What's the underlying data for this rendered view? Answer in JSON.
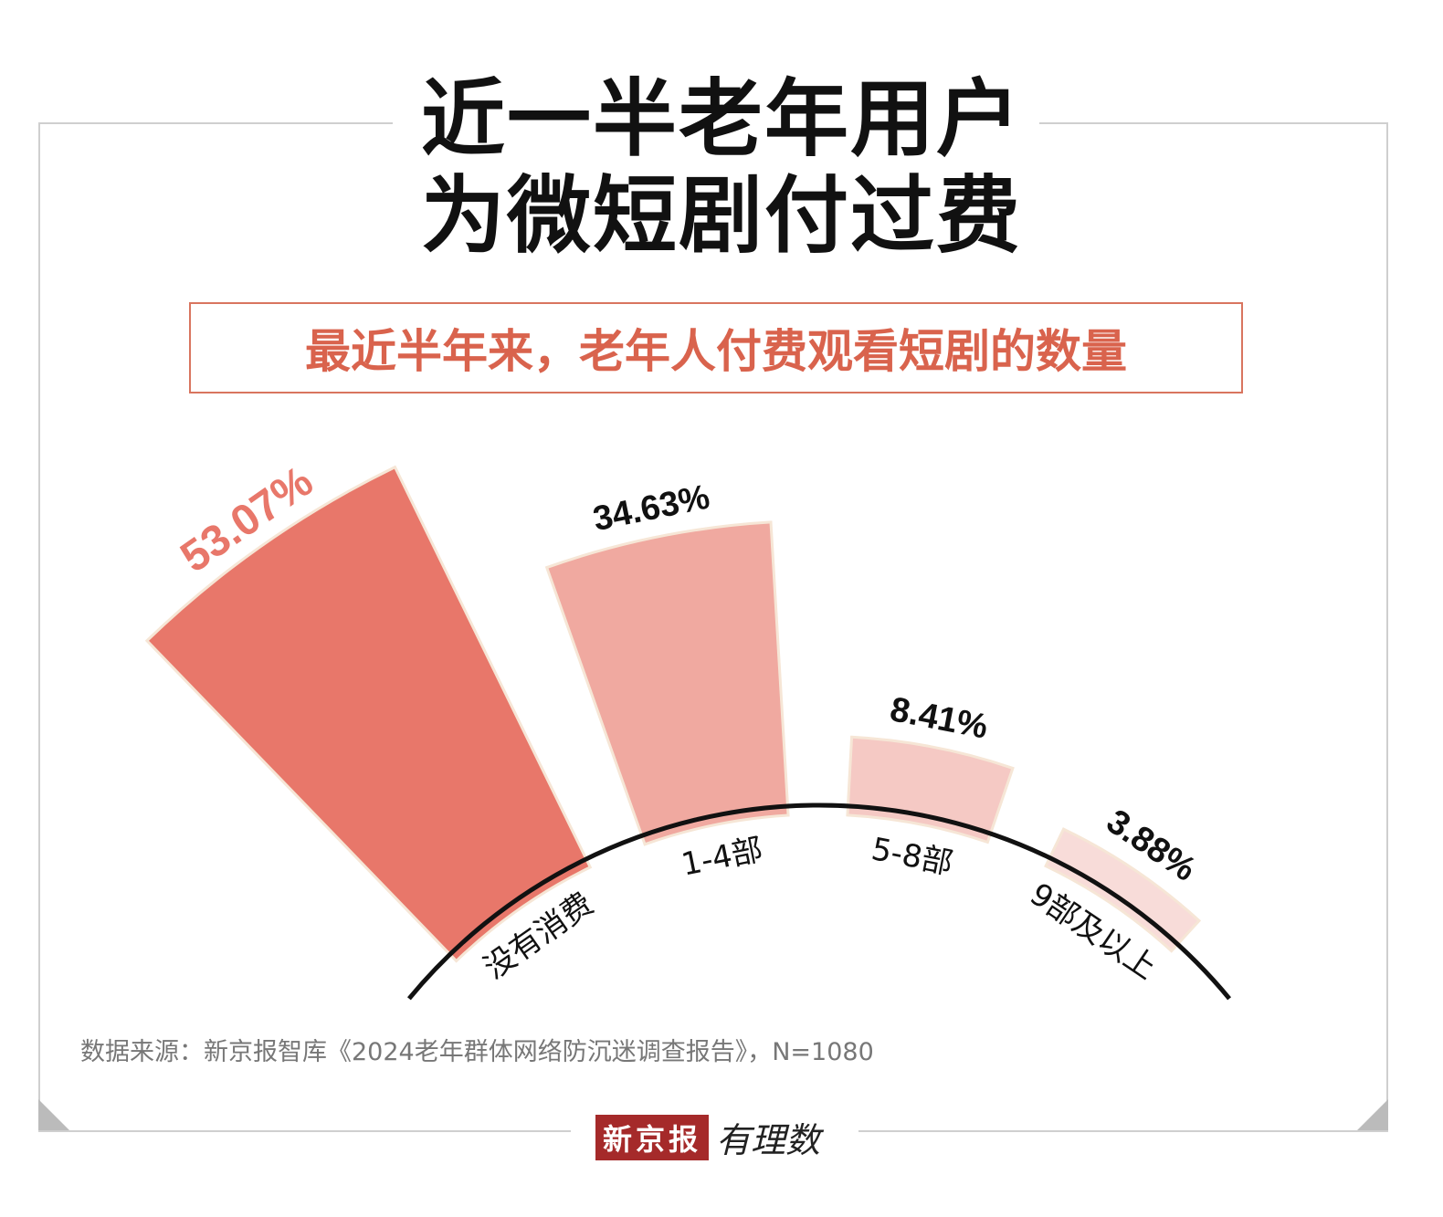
{
  "title_lines": [
    "近一半老年用户",
    "为微短剧付过费"
  ],
  "subtitle": "最近半年来，老年人付费观看短剧的数量",
  "source": "数据来源：新京报智库《2024老年群体网络防沉迷调查报告》，N=1080",
  "logo": {
    "brand": "新京报",
    "sub": "有理数"
  },
  "chart_data": {
    "type": "bar",
    "variant": "radial",
    "title": "最近半年来，老年人付费观看短剧的数量",
    "categories": [
      "没有消费",
      "1-4部",
      "5-8部",
      "9部及以上"
    ],
    "values": [
      53.07,
      34.63,
      8.41,
      3.88
    ],
    "labels": [
      "53.07%",
      "34.63%",
      "8.41%",
      "3.88%"
    ],
    "unit": "%",
    "colors": [
      "#e8776a",
      "#f0a9a0",
      "#f5c9c4",
      "#f8dcd9"
    ],
    "label_colors": [
      "#e8776a",
      "#111111",
      "#111111",
      "#111111"
    ]
  }
}
